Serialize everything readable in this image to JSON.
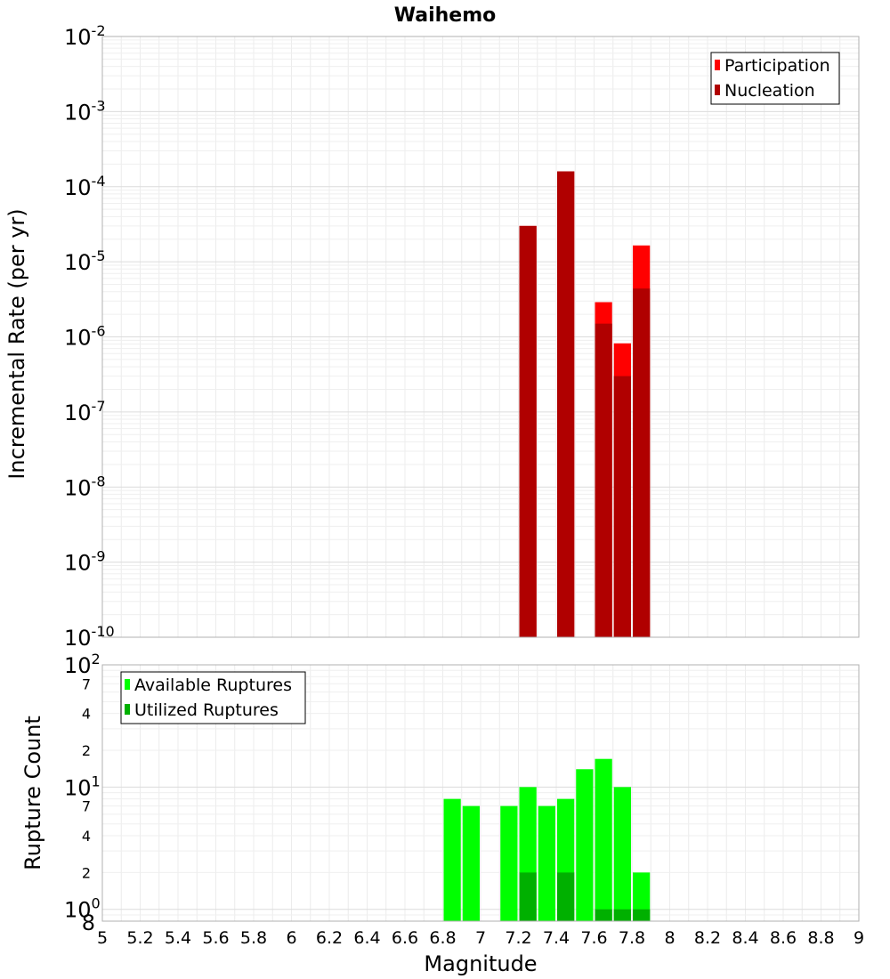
{
  "chart_data": [
    {
      "type": "bar",
      "title": "Waihemo",
      "ylabel": "Incremental Rate (per yr)",
      "xlabel": "",
      "xlim": [
        5,
        9
      ],
      "ylim": [
        1e-10,
        0.01
      ],
      "yscale": "log",
      "grid": true,
      "legend_position": "top-right",
      "bin_width": 0.1,
      "x_ticks": [
        "5",
        "5.2",
        "5.4",
        "5.6",
        "5.8",
        "6",
        "6.2",
        "6.4",
        "6.6",
        "6.8",
        "7",
        "7.2",
        "7.4",
        "7.6",
        "7.8",
        "8",
        "8.2",
        "8.4",
        "8.6",
        "8.8",
        "9"
      ],
      "y_tick_exponents": [
        "-10",
        "-9",
        "-8",
        "-7",
        "-6",
        "-5",
        "-4",
        "-3",
        "-2"
      ],
      "y_tick_base": "10",
      "series": [
        {
          "name": "Participation",
          "color": "#ff0000",
          "x": [
            7.25,
            7.45,
            7.65,
            7.75,
            7.85
          ],
          "values": [
            3e-05,
            0.00016,
            2.9e-06,
            8.2e-07,
            1.65e-05
          ]
        },
        {
          "name": "Nucleation",
          "color": "#b00000",
          "x": [
            7.25,
            7.45,
            7.65,
            7.75,
            7.85
          ],
          "values": [
            3e-05,
            0.00016,
            1.5e-06,
            3e-07,
            4.4e-06
          ]
        }
      ]
    },
    {
      "type": "bar",
      "title": "",
      "ylabel": "Rupture Count",
      "xlabel": "Magnitude",
      "xlim": [
        5,
        9
      ],
      "ylim": [
        0.8,
        100
      ],
      "yscale": "log",
      "grid": true,
      "legend_position": "top-left",
      "bin_width": 0.1,
      "x_ticks": [
        "5",
        "5.2",
        "5.4",
        "5.6",
        "5.8",
        "6",
        "6.2",
        "6.4",
        "6.6",
        "6.8",
        "7",
        "7.2",
        "7.4",
        "7.6",
        "7.8",
        "8",
        "8.2",
        "8.4",
        "8.6",
        "8.8",
        "9"
      ],
      "y_major_ticks": [
        {
          "value": 1,
          "base": "10",
          "exp": "0"
        },
        {
          "value": 10,
          "base": "10",
          "exp": "1"
        },
        {
          "value": 100,
          "base": "10",
          "exp": "2"
        }
      ],
      "y_minor_ticks": [
        {
          "value": 0.8,
          "label": "8"
        },
        {
          "value": 2,
          "label": "2"
        },
        {
          "value": 4,
          "label": "4"
        },
        {
          "value": 7,
          "label": "7"
        },
        {
          "value": 20,
          "label": "2"
        },
        {
          "value": 40,
          "label": "4"
        },
        {
          "value": 70,
          "label": "7"
        }
      ],
      "series": [
        {
          "name": "Available Ruptures",
          "color": "#00ff00",
          "x": [
            6.85,
            6.95,
            7.15,
            7.25,
            7.35,
            7.45,
            7.55,
            7.65,
            7.75,
            7.85
          ],
          "values": [
            8,
            7,
            7,
            10,
            7,
            8,
            14,
            17,
            10,
            2
          ]
        },
        {
          "name": "Utilized Ruptures",
          "color": "#00b000",
          "x": [
            7.25,
            7.45,
            7.65,
            7.75,
            7.85
          ],
          "values": [
            2,
            2,
            1,
            1,
            1
          ]
        }
      ]
    }
  ]
}
